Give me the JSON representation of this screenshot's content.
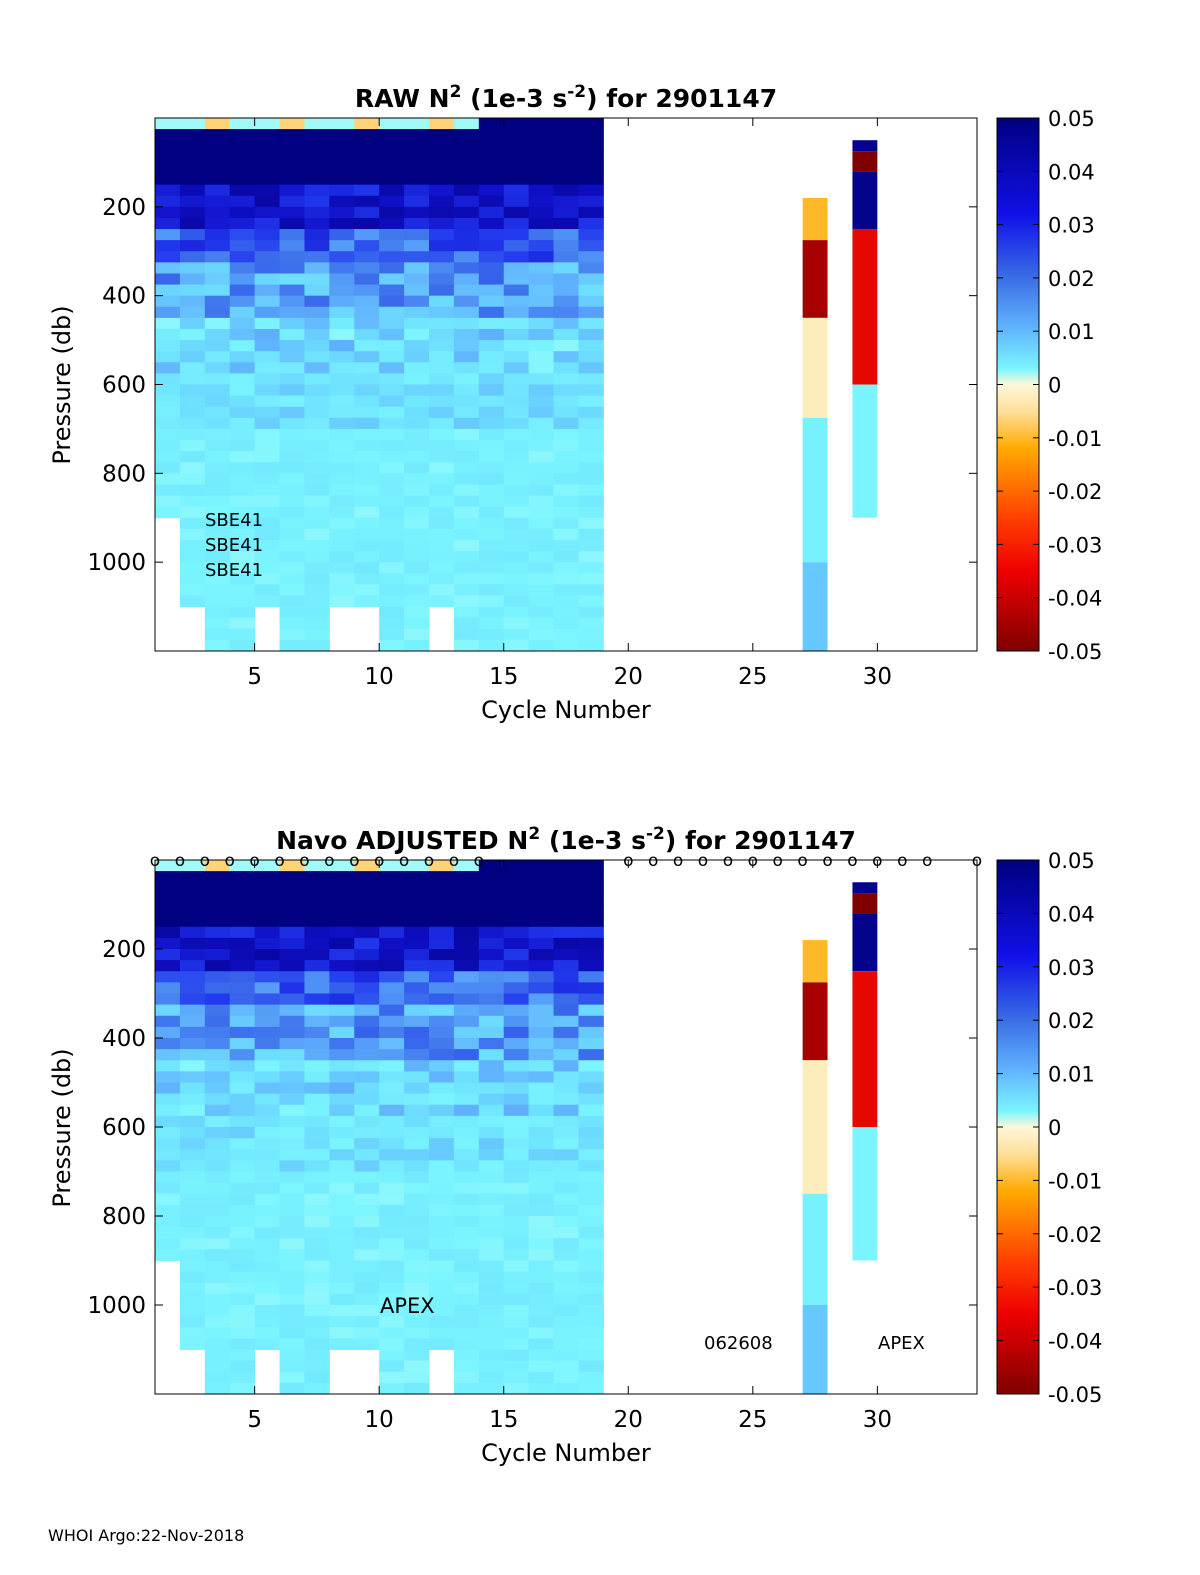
{
  "footer": "WHOI Argo:22-Nov-2018",
  "colorbar": {
    "ticks": [
      "0.05",
      "0.04",
      "0.03",
      "0.02",
      "0.01",
      "0",
      "-0.01",
      "-0.02",
      "-0.03",
      "-0.04",
      "-0.05"
    ],
    "range": [
      -0.05,
      0.05
    ]
  },
  "chart_data": [
    {
      "type": "heatmap",
      "title_main": "RAW N",
      "title_sup": "2",
      "title_mid": " (1e-3 s",
      "title_sup2": "-2",
      "title_end": ") for 2901147",
      "xlabel": "Cycle Number",
      "ylabel": "Pressure (db)",
      "xticks": [
        "5",
        "10",
        "15",
        "20",
        "25",
        "30"
      ],
      "yticks": [
        "200",
        "400",
        "600",
        "800",
        "1000"
      ],
      "xlim": [
        1,
        34
      ],
      "ylim": [
        1200,
        0
      ],
      "colorbar_label_range": [
        -0.05,
        0.05
      ],
      "annotations": [
        "SBE41",
        "SBE41",
        "SBE41"
      ],
      "marker_cycles": [],
      "cycles": [
        {
          "cycle": 27.5,
          "segments": [
            [
              180,
              275,
              -0.008
            ],
            [
              275,
              450,
              -0.045
            ],
            [
              450,
              675,
              -0.001
            ],
            [
              675,
              1000,
              0.009
            ],
            [
              1000,
              1200,
              0.016
            ]
          ]
        },
        {
          "cycle": 29.5,
          "segments": [
            [
              50,
              75,
              0.048
            ],
            [
              75,
              120,
              -0.05
            ],
            [
              120,
              250,
              0.048
            ],
            [
              250,
              600,
              -0.035
            ],
            [
              600,
              900,
              0.008
            ]
          ]
        }
      ],
      "surface_columns": [
        2,
        3,
        4,
        5,
        6,
        7,
        8,
        9,
        10,
        11,
        12,
        13,
        14,
        15,
        16,
        17,
        18
      ]
    },
    {
      "type": "heatmap",
      "title_main": "Navo  ADJUSTED N",
      "title_sup": "2",
      "title_mid": " (1e-3 s",
      "title_sup2": "-2",
      "title_end": ") for 2901147",
      "xlabel": "Cycle Number",
      "ylabel": "Pressure (db)",
      "xticks": [
        "5",
        "10",
        "15",
        "20",
        "25",
        "30"
      ],
      "yticks": [
        "200",
        "400",
        "600",
        "800",
        "1000"
      ],
      "xlim": [
        1,
        34
      ],
      "ylim": [
        1200,
        0
      ],
      "annotations": [
        "APEX",
        "062608",
        "APEX"
      ],
      "marker_symbol": "o",
      "marker_cycles": [
        1,
        2,
        3,
        4,
        5,
        6,
        7,
        8,
        9,
        10,
        11,
        12,
        13,
        14,
        20,
        21,
        22,
        23,
        24,
        25,
        26,
        27,
        28,
        29,
        30,
        31,
        32,
        34
      ],
      "cycles": [
        {
          "cycle": 27.5,
          "segments": [
            [
              180,
              275,
              -0.008
            ],
            [
              275,
              450,
              -0.045
            ],
            [
              450,
              750,
              -0.001
            ],
            [
              750,
              1000,
              0.009
            ],
            [
              1000,
              1200,
              0.016
            ]
          ]
        },
        {
          "cycle": 29.5,
          "segments": [
            [
              50,
              75,
              0.048
            ],
            [
              75,
              120,
              -0.05
            ],
            [
              120,
              250,
              0.048
            ],
            [
              250,
              600,
              -0.035
            ],
            [
              600,
              900,
              0.008
            ]
          ]
        }
      ]
    }
  ]
}
